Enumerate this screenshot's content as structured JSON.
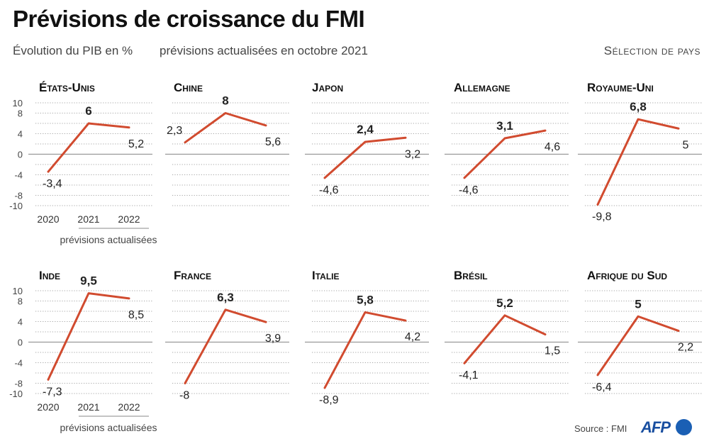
{
  "title": "Prévisions de croissance du FMI",
  "subtitle": "Évolution du PIB en %",
  "subtitle2": "prévisions actualisées en octobre 2021",
  "selection_label": "Sélection de pays",
  "source": "Source : FMI",
  "logo": "AFP",
  "colors": {
    "line": "#d14b2f",
    "grid": "#888888",
    "text": "#222222"
  },
  "chart_data": [
    {
      "type": "line",
      "title": "États-Unis",
      "x": [
        "2020",
        "2021",
        "2022"
      ],
      "values": [
        -3.4,
        6,
        5.2
      ],
      "labels": [
        "-3,4",
        "6",
        "5,2"
      ],
      "ylim": [
        -10,
        10
      ],
      "yticks": [
        "10",
        "8",
        "4",
        "0",
        "-4",
        "-8",
        "-10"
      ],
      "xlabels": [
        "2020",
        "2021",
        "2022"
      ],
      "xnote": "prévisions actualisées"
    },
    {
      "type": "line",
      "title": "Chine",
      "x": [
        "2020",
        "2021",
        "2022"
      ],
      "values": [
        2.3,
        8,
        5.6
      ],
      "labels": [
        "2,3",
        "8",
        "5,6"
      ],
      "ylim": [
        -10,
        10
      ]
    },
    {
      "type": "line",
      "title": "Japon",
      "x": [
        "2020",
        "2021",
        "2022"
      ],
      "values": [
        -4.6,
        2.4,
        3.2
      ],
      "labels": [
        "-4,6",
        "2,4",
        "3,2"
      ],
      "ylim": [
        -10,
        10
      ]
    },
    {
      "type": "line",
      "title": "Allemagne",
      "x": [
        "2020",
        "2021",
        "2022"
      ],
      "values": [
        -4.6,
        3.1,
        4.6
      ],
      "labels": [
        "-4,6",
        "3,1",
        "4,6"
      ],
      "ylim": [
        -10,
        10
      ]
    },
    {
      "type": "line",
      "title": "Royaume-Uni",
      "x": [
        "2020",
        "2021",
        "2022"
      ],
      "values": [
        -9.8,
        6.8,
        5
      ],
      "labels": [
        "-9,8",
        "6,8",
        "5"
      ],
      "ylim": [
        -10,
        10
      ]
    },
    {
      "type": "line",
      "title": "Inde",
      "x": [
        "2020",
        "2021",
        "2022"
      ],
      "values": [
        -7.3,
        9.5,
        8.5
      ],
      "labels": [
        "-7,3",
        "9,5",
        "8,5"
      ],
      "ylim": [
        -10,
        10
      ],
      "yticks": [
        "10",
        "8",
        "4",
        "0",
        "-4",
        "-8",
        "-10"
      ],
      "xlabels": [
        "2020",
        "2021",
        "2022"
      ],
      "xnote": "prévisions actualisées"
    },
    {
      "type": "line",
      "title": "France",
      "x": [
        "2020",
        "2021",
        "2022"
      ],
      "values": [
        -8,
        6.3,
        3.9
      ],
      "labels": [
        "-8",
        "6,3",
        "3,9"
      ],
      "ylim": [
        -10,
        10
      ]
    },
    {
      "type": "line",
      "title": "Italie",
      "x": [
        "2020",
        "2021",
        "2022"
      ],
      "values": [
        -8.9,
        5.8,
        4.2
      ],
      "labels": [
        "-8,9",
        "5,8",
        "4,2"
      ],
      "ylim": [
        -10,
        10
      ]
    },
    {
      "type": "line",
      "title": "Brésil",
      "x": [
        "2020",
        "2021",
        "2022"
      ],
      "values": [
        -4.1,
        5.2,
        1.5
      ],
      "labels": [
        "-4,1",
        "5,2",
        "1,5"
      ],
      "ylim": [
        -10,
        10
      ]
    },
    {
      "type": "line",
      "title": "Afrique du Sud",
      "x": [
        "2020",
        "2021",
        "2022"
      ],
      "values": [
        -6.4,
        5,
        2.2
      ],
      "labels": [
        "-6,4",
        "5",
        "2,2"
      ],
      "ylim": [
        -10,
        10
      ]
    }
  ]
}
